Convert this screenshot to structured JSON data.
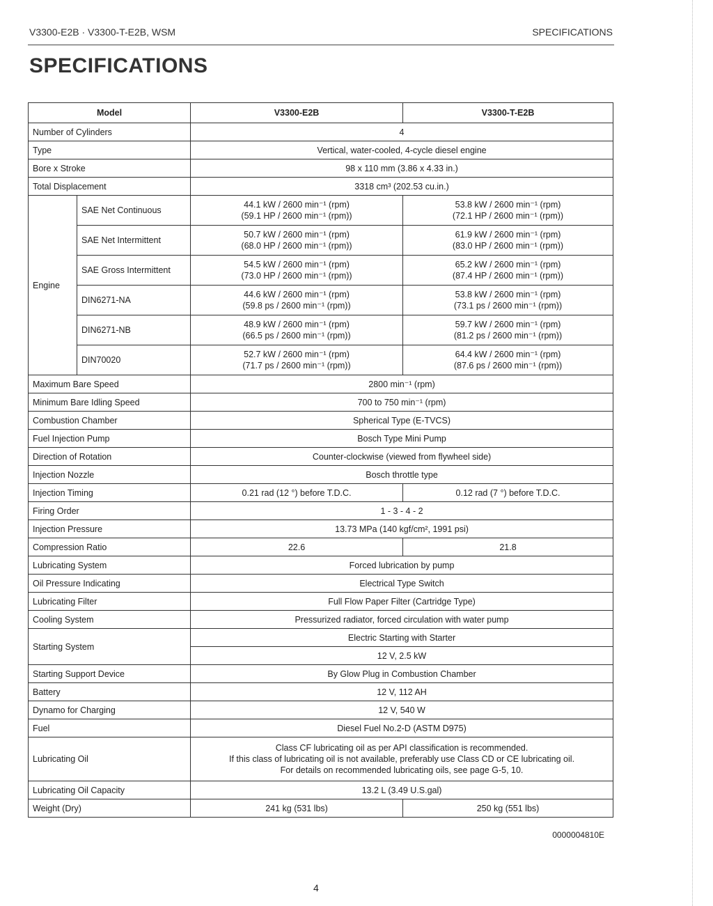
{
  "header": {
    "left": "V3300-E2B · V3300-T-E2B, WSM",
    "right": "SPECIFICATIONS"
  },
  "title": "SPECIFICATIONS",
  "table": {
    "columns": [
      "Model",
      "V3300-E2B",
      "V3300-T-E2B"
    ],
    "rows_top": [
      {
        "label": "Number of Cylinders",
        "value": "4"
      },
      {
        "label": "Type",
        "value": "Vertical, water-cooled, 4-cycle diesel engine"
      },
      {
        "label": "Bore x Stroke",
        "value": "98 x 110 mm (3.86 x 4.33 in.)"
      },
      {
        "label": "Total Displacement",
        "value": "3318 cm³ (202.53 cu.in.)"
      }
    ],
    "engine": {
      "label": "Engine",
      "rows": [
        {
          "label": "SAE Net Continuous",
          "values": [
            "44.1 kW / 2600 min⁻¹ (rpm)\n(59.1 HP / 2600 min⁻¹ (rpm))",
            "53.8 kW / 2600 min⁻¹ (rpm)\n(72.1 HP / 2600 min⁻¹ (rpm))"
          ]
        },
        {
          "label": "SAE Net Intermittent",
          "values": [
            "50.7 kW / 2600 min⁻¹ (rpm)\n(68.0 HP / 2600 min⁻¹ (rpm))",
            "61.9 kW / 2600 min⁻¹ (rpm)\n(83.0 HP / 2600 min⁻¹ (rpm))"
          ]
        },
        {
          "label": "SAE Gross Intermittent",
          "values": [
            "54.5 kW / 2600 min⁻¹ (rpm)\n(73.0 HP / 2600 min⁻¹ (rpm))",
            "65.2 kW / 2600 min⁻¹ (rpm)\n(87.4 HP / 2600 min⁻¹ (rpm))"
          ]
        },
        {
          "label": "DIN6271-NA",
          "values": [
            "44.6 kW / 2600 min⁻¹ (rpm)\n(59.8 ps / 2600 min⁻¹ (rpm))",
            "53.8 kW / 2600 min⁻¹ (rpm)\n(73.1 ps / 2600 min⁻¹ (rpm))"
          ]
        },
        {
          "label": "DIN6271-NB",
          "values": [
            "48.9 kW / 2600 min⁻¹ (rpm)\n(66.5 ps / 2600 min⁻¹ (rpm))",
            "59.7 kW / 2600 min⁻¹ (rpm)\n(81.2 ps / 2600 min⁻¹ (rpm))"
          ]
        },
        {
          "label": "DIN70020",
          "values": [
            "52.7 kW / 2600 min⁻¹ (rpm)\n(71.7 ps / 2600 min⁻¹ (rpm))",
            "64.4 kW / 2600 min⁻¹ (rpm)\n(87.6 ps / 2600 min⁻¹ (rpm))"
          ]
        }
      ]
    },
    "rows_bottom": [
      {
        "label": "Maximum Bare Speed",
        "value": "2800 min⁻¹ (rpm)"
      },
      {
        "label": "Minimum Bare Idling Speed",
        "value": "700 to 750 min⁻¹ (rpm)"
      },
      {
        "label": "Combustion Chamber",
        "value": "Spherical Type (E-TVCS)"
      },
      {
        "label": "Fuel Injection Pump",
        "value": "Bosch Type Mini Pump"
      },
      {
        "label": "Direction of Rotation",
        "value": "Counter-clockwise (viewed from flywheel side)"
      },
      {
        "label": "Injection Nozzle",
        "value": "Bosch throttle type"
      },
      {
        "label": "Injection Timing",
        "values": [
          "0.21 rad (12 °) before T.D.C.",
          "0.12 rad (7 °) before T.D.C."
        ]
      },
      {
        "label": "Firing Order",
        "value": "1 - 3 - 4 - 2"
      },
      {
        "label": "Injection Pressure",
        "value": "13.73 MPa (140 kgf/cm², 1991 psi)"
      },
      {
        "label": "Compression Ratio",
        "values": [
          "22.6",
          "21.8"
        ]
      },
      {
        "label": "Lubricating System",
        "value": "Forced lubrication by pump"
      },
      {
        "label": "Oil Pressure Indicating",
        "value": "Electrical Type Switch"
      },
      {
        "label": "Lubricating Filter",
        "value": "Full Flow Paper Filter (Cartridge Type)"
      },
      {
        "label": "Cooling System",
        "value": "Pressurized radiator, forced circulation with water pump"
      },
      {
        "label": "Starting System",
        "subvalues": [
          "Electric Starting with Starter",
          "12 V, 2.5 kW"
        ]
      },
      {
        "label": "Starting Support Device",
        "value": "By Glow Plug in Combustion Chamber"
      },
      {
        "label": "Battery",
        "value": "12 V, 112 AH"
      },
      {
        "label": "Dynamo for Charging",
        "value": "12 V, 540 W"
      },
      {
        "label": "Fuel",
        "value": "Diesel Fuel No.2-D (ASTM D975)"
      },
      {
        "label": "Lubricating Oil",
        "value": "Class CF lubricating oil as per API classification is recommended.\nIf this class of lubricating oil is not available, preferably use Class CD or CE lubricating oil.\nFor details on recommended lubricating oils, see page G-5, 10.",
        "tall": true
      },
      {
        "label": "Lubricating Oil Capacity",
        "value": "13.2 L (3.49 U.S.gal)"
      },
      {
        "label": "Weight (Dry)",
        "values": [
          "241 kg (531 lbs)",
          "250 kg (551 lbs)"
        ]
      }
    ]
  },
  "doc_id": "0000004810E",
  "page_number": "4"
}
